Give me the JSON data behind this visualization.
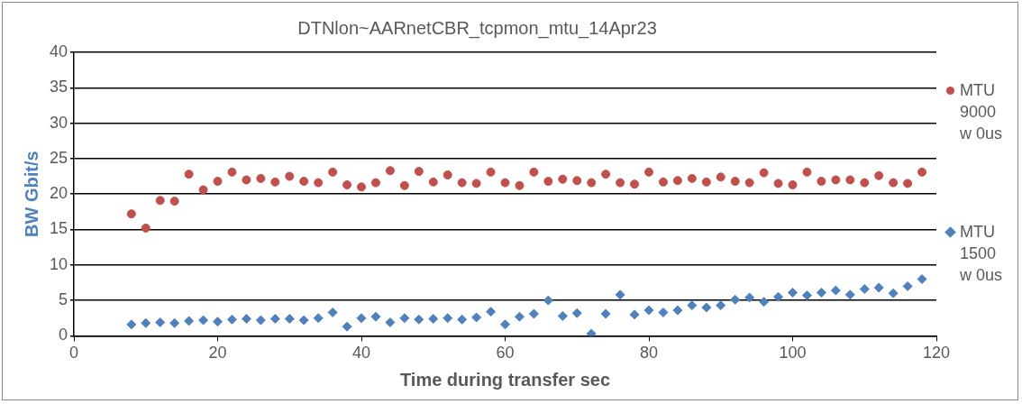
{
  "chart_data": {
    "type": "scatter",
    "title": "DTNlon~AARnetCBR_tcpmon_mtu_14Apr23",
    "xlabel": "Time during transfer sec",
    "ylabel": "BW Gbit/s",
    "x": [
      8,
      10,
      12,
      14,
      16,
      18,
      20,
      22,
      24,
      26,
      28,
      30,
      32,
      34,
      36,
      38,
      40,
      42,
      44,
      46,
      48,
      50,
      52,
      54,
      56,
      58,
      60,
      62,
      64,
      66,
      68,
      70,
      72,
      74,
      76,
      78,
      80,
      82,
      84,
      86,
      88,
      90,
      92,
      94,
      96,
      98,
      100,
      102,
      104,
      106,
      108,
      110,
      112,
      114,
      116,
      118
    ],
    "series": [
      {
        "name": "MTU 9000 w 0us",
        "color": "#c0504d",
        "marker": "circle",
        "values": [
          17.2,
          15.2,
          19.1,
          19,
          22.8,
          20.6,
          21.8,
          23.1,
          22,
          22.2,
          21.7,
          22.5,
          21.8,
          21.6,
          23.1,
          21.3,
          21,
          21.6,
          23.3,
          21.2,
          23.2,
          21.7,
          22.7,
          21.6,
          21.5,
          23.1,
          21.6,
          21.2,
          23.1,
          21.8,
          22.1,
          21.9,
          21.6,
          22.8,
          21.6,
          21.4,
          23.1,
          21.7,
          21.9,
          22.2,
          21.7,
          22.4,
          21.8,
          21.6,
          23,
          21.5,
          21.3,
          23.1,
          21.8,
          22,
          22,
          21.6,
          22.6,
          21.6,
          21.5,
          23.1
        ]
      },
      {
        "name": "MTU 1500 w 0us",
        "color": "#4f81bd",
        "marker": "diamond",
        "values": [
          1.6,
          1.8,
          1.9,
          1.8,
          2.1,
          2.2,
          2,
          2.3,
          2.4,
          2.2,
          2.4,
          2.4,
          2.2,
          2.5,
          3.3,
          1.3,
          2.5,
          2.7,
          1.9,
          2.5,
          2.3,
          2.4,
          2.5,
          2.3,
          2.6,
          3.4,
          1.6,
          2.7,
          3.1,
          5,
          2.8,
          3.2,
          0.3,
          3.1,
          5.8,
          3,
          3.6,
          3.3,
          3.6,
          4.3,
          4,
          4.3,
          5.1,
          5.4,
          4.8,
          5.5,
          6.1,
          5.7,
          6.1,
          6.4,
          5.8,
          6.6,
          6.8,
          6,
          7,
          8
        ]
      }
    ],
    "xlim": [
      0,
      120
    ],
    "xticks": [
      0,
      20,
      40,
      60,
      80,
      100,
      120
    ],
    "ylim": [
      0,
      40
    ],
    "yticks": [
      0,
      5,
      10,
      15,
      20,
      25,
      30,
      35,
      40
    ],
    "grid": "y",
    "legend": "right"
  }
}
